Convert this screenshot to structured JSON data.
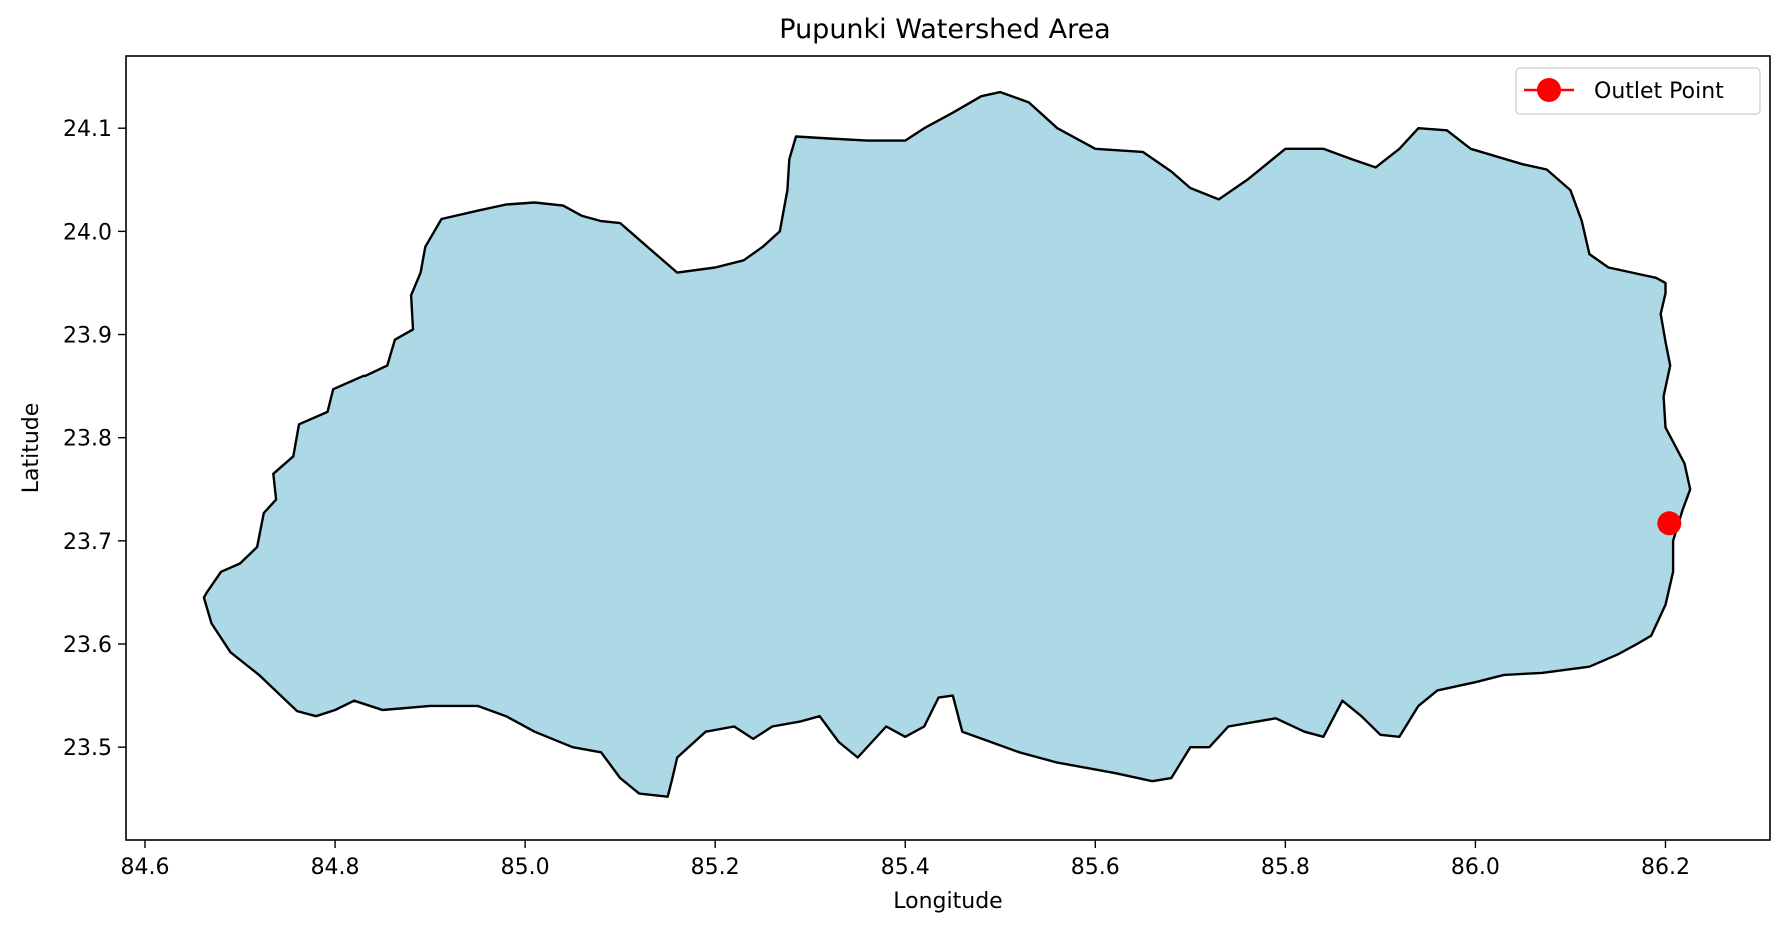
{
  "chart_data": {
    "type": "map",
    "title": "Pupunki Watershed Area",
    "xlabel": "Longitude",
    "ylabel": "Latitude",
    "xlim": [
      84.58,
      86.31
    ],
    "ylim": [
      23.41,
      24.17
    ],
    "xticks": [
      "84.6",
      "84.8",
      "85.0",
      "85.2",
      "85.4",
      "85.6",
      "85.8",
      "86.0",
      "86.2"
    ],
    "yticks": [
      "23.5",
      "23.6",
      "23.7",
      "23.8",
      "23.9",
      "24.0",
      "24.1"
    ],
    "grid": false,
    "legend_position": "top-right",
    "legend": [
      {
        "label": "Outlet Point",
        "color": "#ff0000",
        "marker": "circle-with-line"
      }
    ],
    "watershed": {
      "fill_color": "#add8e6",
      "edge_color": "#000000",
      "boundary": [
        [
          84.665,
          23.65
        ],
        [
          84.68,
          23.67
        ],
        [
          84.7,
          23.678
        ],
        [
          84.718,
          23.694
        ],
        [
          84.725,
          23.727
        ],
        [
          84.738,
          23.74
        ],
        [
          84.735,
          23.765
        ],
        [
          84.756,
          23.782
        ],
        [
          84.762,
          23.813
        ],
        [
          84.792,
          23.825
        ],
        [
          84.798,
          23.847
        ],
        [
          84.83,
          23.86
        ],
        [
          84.832,
          23.86
        ],
        [
          84.855,
          23.87
        ],
        [
          84.863,
          23.895
        ],
        [
          84.882,
          23.905
        ],
        [
          84.88,
          23.938
        ],
        [
          84.89,
          23.96
        ],
        [
          84.895,
          23.985
        ],
        [
          84.912,
          24.012
        ],
        [
          84.95,
          24.02
        ],
        [
          84.98,
          24.026
        ],
        [
          85.01,
          24.028
        ],
        [
          85.04,
          24.025
        ],
        [
          85.06,
          24.015
        ],
        [
          85.08,
          24.01
        ],
        [
          85.1,
          24.008
        ],
        [
          85.135,
          23.98
        ],
        [
          85.16,
          23.96
        ],
        [
          85.2,
          23.965
        ],
        [
          85.23,
          23.972
        ],
        [
          85.25,
          23.985
        ],
        [
          85.268,
          24.0
        ],
        [
          85.276,
          24.04
        ],
        [
          85.278,
          24.07
        ],
        [
          85.285,
          24.092
        ],
        [
          85.32,
          24.09
        ],
        [
          85.36,
          24.088
        ],
        [
          85.4,
          24.088
        ],
        [
          85.42,
          24.1
        ],
        [
          85.45,
          24.115
        ],
        [
          85.48,
          24.131
        ],
        [
          85.5,
          24.135
        ],
        [
          85.53,
          24.125
        ],
        [
          85.56,
          24.1
        ],
        [
          85.6,
          24.08
        ],
        [
          85.65,
          24.077
        ],
        [
          85.68,
          24.058
        ],
        [
          85.7,
          24.042
        ],
        [
          85.73,
          24.031
        ],
        [
          85.76,
          24.05
        ],
        [
          85.8,
          24.08
        ],
        [
          85.84,
          24.08
        ],
        [
          85.87,
          24.07
        ],
        [
          85.895,
          24.062
        ],
        [
          85.92,
          24.08
        ],
        [
          85.94,
          24.1
        ],
        [
          85.97,
          24.098
        ],
        [
          85.995,
          24.08
        ],
        [
          86.05,
          24.065
        ],
        [
          86.075,
          24.06
        ],
        [
          86.1,
          24.04
        ],
        [
          86.112,
          24.01
        ],
        [
          86.12,
          23.978
        ],
        [
          86.14,
          23.965
        ],
        [
          86.19,
          23.955
        ],
        [
          86.2,
          23.95
        ],
        [
          86.2,
          23.94
        ],
        [
          86.195,
          23.92
        ],
        [
          86.2,
          23.893
        ],
        [
          86.205,
          23.87
        ],
        [
          86.198,
          23.84
        ],
        [
          86.2,
          23.81
        ],
        [
          86.22,
          23.775
        ],
        [
          86.226,
          23.75
        ],
        [
          86.218,
          23.73
        ],
        [
          86.208,
          23.7
        ],
        [
          86.208,
          23.67
        ],
        [
          86.2,
          23.638
        ],
        [
          86.185,
          23.608
        ],
        [
          86.17,
          23.6
        ],
        [
          86.15,
          23.59
        ],
        [
          86.12,
          23.578
        ],
        [
          86.07,
          23.572
        ],
        [
          86.03,
          23.57
        ],
        [
          86.0,
          23.563
        ],
        [
          85.96,
          23.555
        ],
        [
          85.94,
          23.54
        ],
        [
          85.92,
          23.51
        ],
        [
          85.9,
          23.512
        ],
        [
          85.88,
          23.53
        ],
        [
          85.86,
          23.545
        ],
        [
          85.84,
          23.51
        ],
        [
          85.82,
          23.515
        ],
        [
          85.79,
          23.528
        ],
        [
          85.74,
          23.52
        ],
        [
          85.72,
          23.5
        ],
        [
          85.7,
          23.5
        ],
        [
          85.68,
          23.47
        ],
        [
          85.66,
          23.467
        ],
        [
          85.62,
          23.475
        ],
        [
          85.56,
          23.485
        ],
        [
          85.52,
          23.495
        ],
        [
          85.49,
          23.505
        ],
        [
          85.46,
          23.515
        ],
        [
          85.45,
          23.55
        ],
        [
          85.435,
          23.548
        ],
        [
          85.42,
          23.52
        ],
        [
          85.4,
          23.51
        ],
        [
          85.38,
          23.52
        ],
        [
          85.35,
          23.49
        ],
        [
          85.33,
          23.505
        ],
        [
          85.31,
          23.53
        ],
        [
          85.29,
          23.525
        ],
        [
          85.26,
          23.52
        ],
        [
          85.24,
          23.508
        ],
        [
          85.22,
          23.52
        ],
        [
          85.19,
          23.515
        ],
        [
          85.16,
          23.49
        ],
        [
          85.155,
          23.47
        ],
        [
          85.15,
          23.452
        ],
        [
          85.12,
          23.455
        ],
        [
          85.1,
          23.47
        ],
        [
          85.08,
          23.495
        ],
        [
          85.05,
          23.5
        ],
        [
          85.01,
          23.515
        ],
        [
          84.98,
          23.53
        ],
        [
          84.95,
          23.54
        ],
        [
          84.9,
          23.54
        ],
        [
          84.85,
          23.536
        ],
        [
          84.82,
          23.545
        ],
        [
          84.8,
          23.536
        ],
        [
          84.78,
          23.53
        ],
        [
          84.76,
          23.535
        ],
        [
          84.72,
          23.57
        ],
        [
          84.69,
          23.592
        ],
        [
          84.67,
          23.62
        ],
        [
          84.662,
          23.645
        ]
      ]
    },
    "outlet_point": {
      "longitude": 86.204,
      "latitude": 23.717,
      "color": "#ff0000",
      "label": "Outlet Point"
    }
  }
}
